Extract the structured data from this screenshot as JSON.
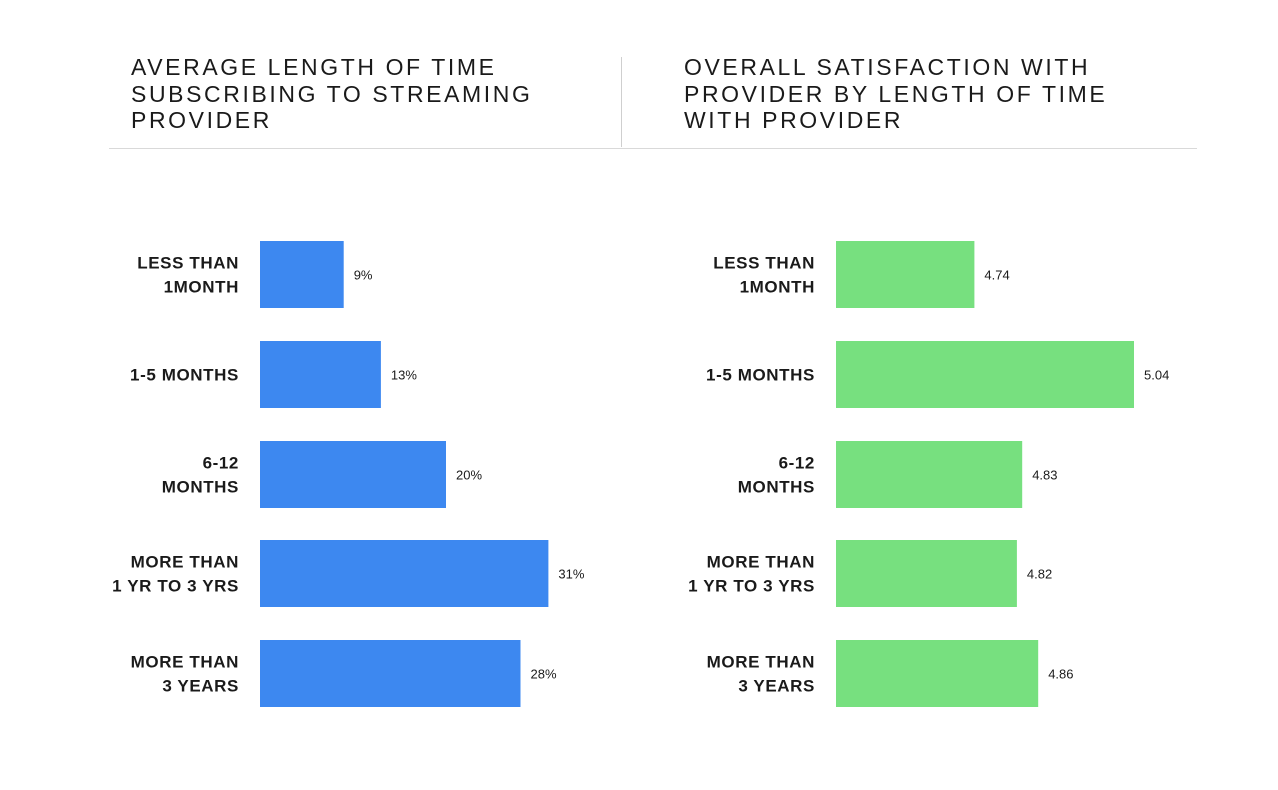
{
  "chart_data": [
    {
      "type": "bar",
      "orientation": "horizontal",
      "title": "AVERAGE LENGTH OF TIME SUBSCRIBING TO STREAMING PROVIDER",
      "categories": [
        [
          "LESS THAN",
          "1MONTH"
        ],
        [
          "1-5 MONTHS"
        ],
        [
          "6-12",
          "MONTHS"
        ],
        [
          "MORE THAN",
          "1 YR TO 3 YRS"
        ],
        [
          "MORE THAN",
          "3 YEARS"
        ]
      ],
      "values": [
        9,
        13,
        20,
        31,
        28
      ],
      "value_labels": [
        "9%",
        "13%",
        "20%",
        "31%",
        "28%"
      ],
      "unit": "%",
      "xlim": [
        0,
        43
      ],
      "color": "#3d88f0",
      "grid": false
    },
    {
      "type": "bar",
      "orientation": "horizontal",
      "title": "OVERALL SATISFACTION WITH PROVIDER BY LENGTH OF TIME WITH PROVIDER",
      "categories": [
        [
          "LESS THAN",
          "1MONTH"
        ],
        [
          "1-5 MONTHS"
        ],
        [
          "6-12",
          "MONTHS"
        ],
        [
          "MORE THAN",
          "1 YR TO 3 YRS"
        ],
        [
          "MORE THAN",
          "3 YEARS"
        ]
      ],
      "values": [
        4.74,
        5.04,
        4.83,
        4.82,
        4.86
      ],
      "value_labels": [
        "4.74",
        "5.04",
        "4.83",
        "4.82",
        "4.86"
      ],
      "xlim": [
        4.48,
        5.04
      ],
      "color": "#77e07f",
      "grid": false
    }
  ]
}
